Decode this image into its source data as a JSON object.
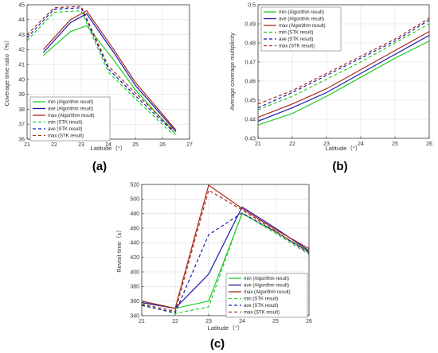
{
  "colors": {
    "min": "#22cc22",
    "ave": "#1a1aaa",
    "max": "#aa2a1a",
    "min_stk": "#22cc22",
    "ave_stk": "#1a1aaa",
    "max_stk": "#aa2a1a"
  },
  "chart_data": [
    {
      "type": "line",
      "caption": "(a)",
      "xlabel": "Latitude（°）",
      "ylabel": "Coverage time ratio（%）",
      "xlim": [
        21,
        27
      ],
      "ylim": [
        36,
        45
      ],
      "xticks": [
        "21",
        "22",
        "23",
        "24",
        "25",
        "26",
        "27"
      ],
      "yticks": [
        "36",
        "37",
        "38",
        "39",
        "40",
        "41",
        "42",
        "43",
        "44",
        "45"
      ],
      "grid": true,
      "legend_position": "bottom-left",
      "series": [
        {
          "name": "min (Algorithm result)",
          "key": "min",
          "style": "solid",
          "x": [
            21.6,
            22.6,
            23.2,
            24.2,
            25,
            26.5
          ],
          "y": [
            41.6,
            43.2,
            43.6,
            41.3,
            39.3,
            36.3
          ]
        },
        {
          "name": "ave (Algorithm result)",
          "key": "ave",
          "style": "solid",
          "x": [
            21.6,
            22.6,
            23.2,
            24.2,
            25,
            26.5
          ],
          "y": [
            41.8,
            43.8,
            44.4,
            41.8,
            39.6,
            36.5
          ]
        },
        {
          "name": "max (Algorithm result)",
          "key": "max",
          "style": "solid",
          "x": [
            21.6,
            22.6,
            23.2,
            24.2,
            25,
            26.5
          ],
          "y": [
            42,
            44,
            44.6,
            42,
            39.8,
            36.6
          ]
        },
        {
          "name": "min (STK result)",
          "key": "min_stk",
          "style": "dashed",
          "x": [
            21,
            22,
            23,
            24,
            25,
            26.4
          ],
          "y": [
            42.6,
            44.5,
            44.6,
            40.5,
            38.7,
            36.3
          ]
        },
        {
          "name": "ave (STK result)",
          "key": "ave_stk",
          "style": "dashed",
          "x": [
            21,
            22,
            23,
            24,
            25,
            26.4
          ],
          "y": [
            42.8,
            44.7,
            44.8,
            40.7,
            38.9,
            36.5
          ]
        },
        {
          "name": "max (STK result)",
          "key": "max_stk",
          "style": "dashed",
          "x": [
            21,
            22,
            23,
            24,
            25,
            26.4
          ],
          "y": [
            43,
            44.8,
            44.9,
            40.9,
            39.1,
            36.6
          ]
        }
      ]
    },
    {
      "type": "line",
      "caption": "(b)",
      "xlabel": "Latitude（°）",
      "ylabel": "Average coverage multiplicity",
      "xlim": [
        21,
        26
      ],
      "ylim": [
        0.43,
        0.5
      ],
      "xticks": [
        "21",
        "22",
        "23",
        "24",
        "25",
        "26"
      ],
      "yticks": [
        "0.43",
        "0.44",
        "0.45",
        "0.46",
        "0.47",
        "0.48",
        "0.49",
        "0.5"
      ],
      "grid": true,
      "legend_position": "top-left",
      "series": [
        {
          "name": "min (Algorithm result)",
          "key": "min",
          "style": "solid",
          "x": [
            21,
            22,
            23,
            24,
            25,
            26
          ],
          "y": [
            0.437,
            0.443,
            0.452,
            0.462,
            0.472,
            0.481
          ]
        },
        {
          "name": "ave (Algorithm result)",
          "key": "ave",
          "style": "solid",
          "x": [
            21,
            22,
            23,
            24,
            25,
            26
          ],
          "y": [
            0.439,
            0.446,
            0.454,
            0.464,
            0.474,
            0.484
          ]
        },
        {
          "name": "max (Algorithm result)",
          "key": "max",
          "style": "solid",
          "x": [
            21,
            22,
            23,
            24,
            25,
            26
          ],
          "y": [
            0.441,
            0.448,
            0.456,
            0.466,
            0.476,
            0.486
          ]
        },
        {
          "name": "min (STK result)",
          "key": "min_stk",
          "style": "dashed",
          "x": [
            21,
            22,
            23,
            24,
            25,
            26
          ],
          "y": [
            0.445,
            0.452,
            0.461,
            0.47,
            0.48,
            0.49
          ]
        },
        {
          "name": "ave (STK result)",
          "key": "ave_stk",
          "style": "dashed",
          "x": [
            21,
            22,
            23,
            24,
            25,
            26
          ],
          "y": [
            0.446,
            0.454,
            0.463,
            0.472,
            0.481,
            0.492
          ]
        },
        {
          "name": "max (STK result)",
          "key": "max_stk",
          "style": "dashed",
          "x": [
            21,
            22,
            23,
            24,
            25,
            26
          ],
          "y": [
            0.448,
            0.455,
            0.464,
            0.473,
            0.482,
            0.493
          ]
        }
      ]
    },
    {
      "type": "line",
      "caption": "(c)",
      "xlabel": "Latitude（°）",
      "ylabel": "Revisit time（s）",
      "xlim": [
        21,
        26
      ],
      "ylim": [
        340,
        520
      ],
      "xticks": [
        "21",
        "22",
        "23",
        "24",
        "25",
        "26"
      ],
      "yticks": [
        "340",
        "360",
        "380",
        "400",
        "420",
        "440",
        "460",
        "480",
        "500",
        "520"
      ],
      "grid": true,
      "legend_position": "bottom-right",
      "series": [
        {
          "name": "min (Algorithm result)",
          "key": "min",
          "style": "solid",
          "x": [
            21,
            22,
            23,
            24,
            25,
            26
          ],
          "y": [
            358,
            350,
            360,
            480,
            455,
            428
          ]
        },
        {
          "name": "ave (Algorithm result)",
          "key": "ave",
          "style": "solid",
          "x": [
            21,
            22,
            23,
            24,
            25,
            26
          ],
          "y": [
            358,
            350,
            397,
            489,
            460,
            429
          ]
        },
        {
          "name": "max (Algorithm result)",
          "key": "max",
          "style": "solid",
          "x": [
            21,
            22,
            23,
            24,
            25,
            26
          ],
          "y": [
            360,
            350,
            519,
            487,
            458,
            432
          ]
        },
        {
          "name": "min (STK result)",
          "key": "min_stk",
          "style": "dashed",
          "x": [
            21,
            22,
            23,
            24,
            25,
            26
          ],
          "y": [
            355,
            343,
            352,
            481,
            453,
            424
          ]
        },
        {
          "name": "ave (STK result)",
          "key": "ave_stk",
          "style": "dashed",
          "x": [
            21,
            22,
            23,
            24,
            25,
            26
          ],
          "y": [
            354,
            344,
            451,
            481,
            455,
            426
          ]
        },
        {
          "name": "max (STK result)",
          "key": "max_stk",
          "style": "dashed",
          "x": [
            21,
            22,
            23,
            24,
            25,
            26
          ],
          "y": [
            356,
            346,
            512,
            485,
            456,
            427
          ]
        }
      ]
    }
  ]
}
